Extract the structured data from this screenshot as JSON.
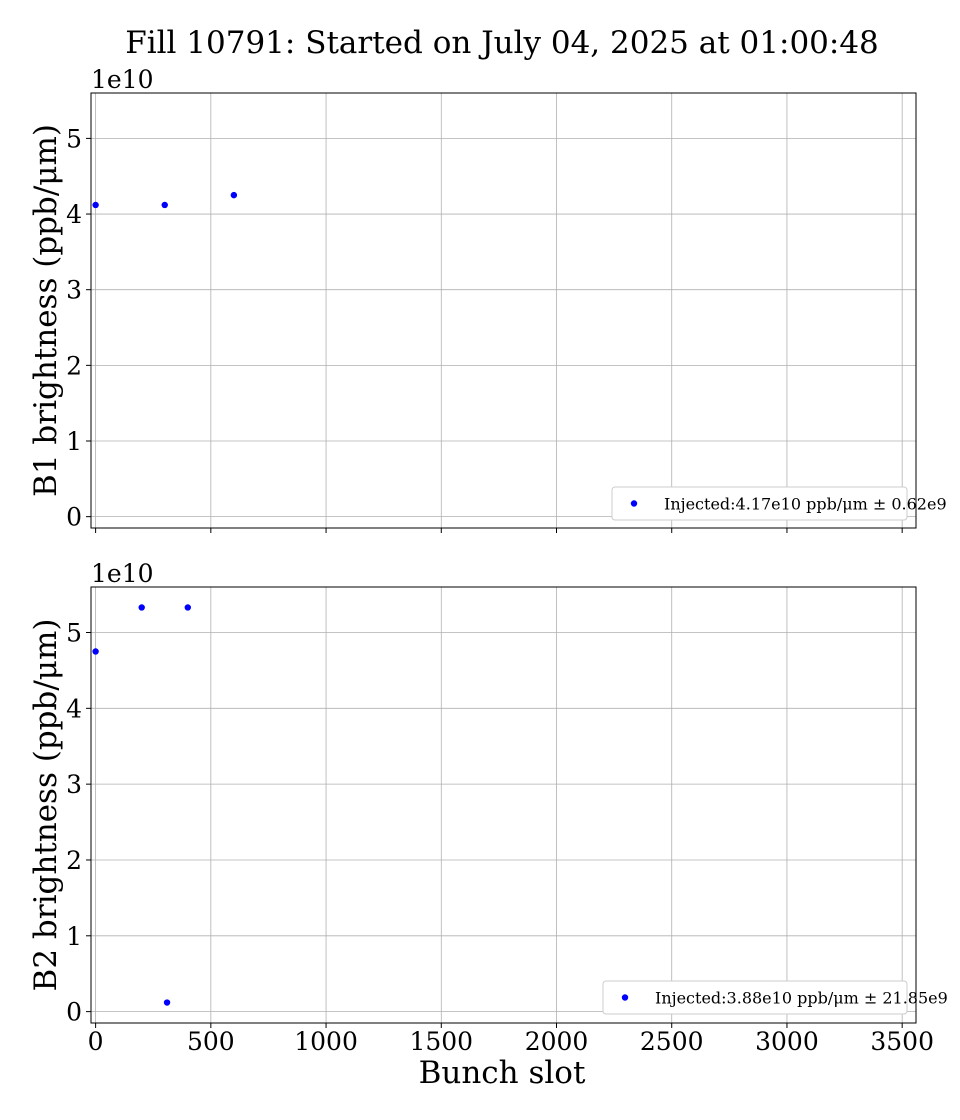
{
  "chart_data": {
    "title": "Fill 10791: Started on July 04, 2025 at 01:00:48",
    "xlabel": "Bunch slot",
    "xlim": [
      -20,
      3560
    ],
    "xticks": [
      0,
      500,
      1000,
      1500,
      2000,
      2500,
      3000,
      3500
    ],
    "marker_color": "#0000ff",
    "panels": [
      {
        "type": "scatter",
        "ylabel": "B1 brightness (ppb/μm)",
        "offset_text": "1e10",
        "ylim": [
          -0.15,
          5.6
        ],
        "yticks": [
          0,
          1,
          2,
          3,
          4,
          5
        ],
        "grid": true,
        "legend_position": "lower-right",
        "series": [
          {
            "name": "Injected:4.17e10 ppb/μm ± 0.62e9",
            "x": [
              0,
              300,
              600
            ],
            "y": [
              4.12,
              4.12,
              4.25
            ]
          }
        ]
      },
      {
        "type": "scatter",
        "ylabel": "B2 brightness (ppb/μm)",
        "offset_text": "1e10",
        "ylim": [
          -0.15,
          5.6
        ],
        "yticks": [
          0,
          1,
          2,
          3,
          4,
          5
        ],
        "grid": true,
        "legend_position": "lower-right",
        "series": [
          {
            "name": "Injected:3.88e10 ppb/μm ± 21.85e9",
            "x": [
              0,
              200,
              400,
              310
            ],
            "y": [
              4.75,
              5.33,
              5.33,
              0.12
            ]
          }
        ]
      }
    ]
  }
}
